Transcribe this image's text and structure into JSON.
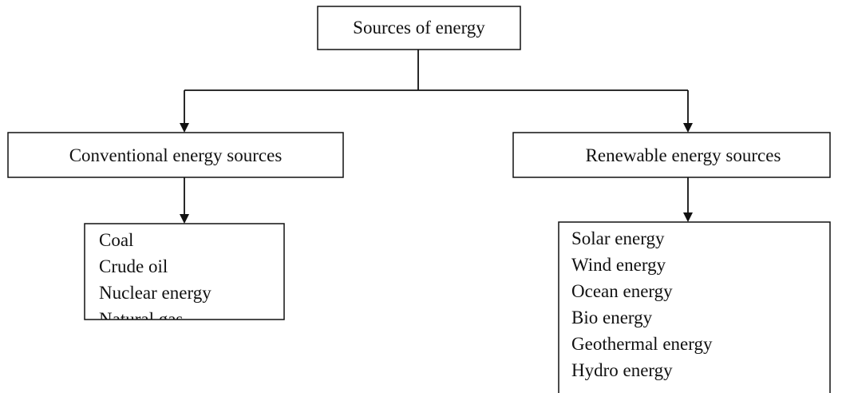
{
  "root": {
    "label": "Sources of energy"
  },
  "branches": [
    {
      "label": "Conventional energy sources",
      "items": [
        "Coal",
        "Crude oil",
        "Nuclear energy",
        "Natural gas"
      ]
    },
    {
      "label": "Renewable energy sources",
      "items": [
        "Solar energy",
        "Wind energy",
        "Ocean energy",
        "Bio energy",
        "Geothermal energy",
        "Hydro energy"
      ]
    }
  ]
}
